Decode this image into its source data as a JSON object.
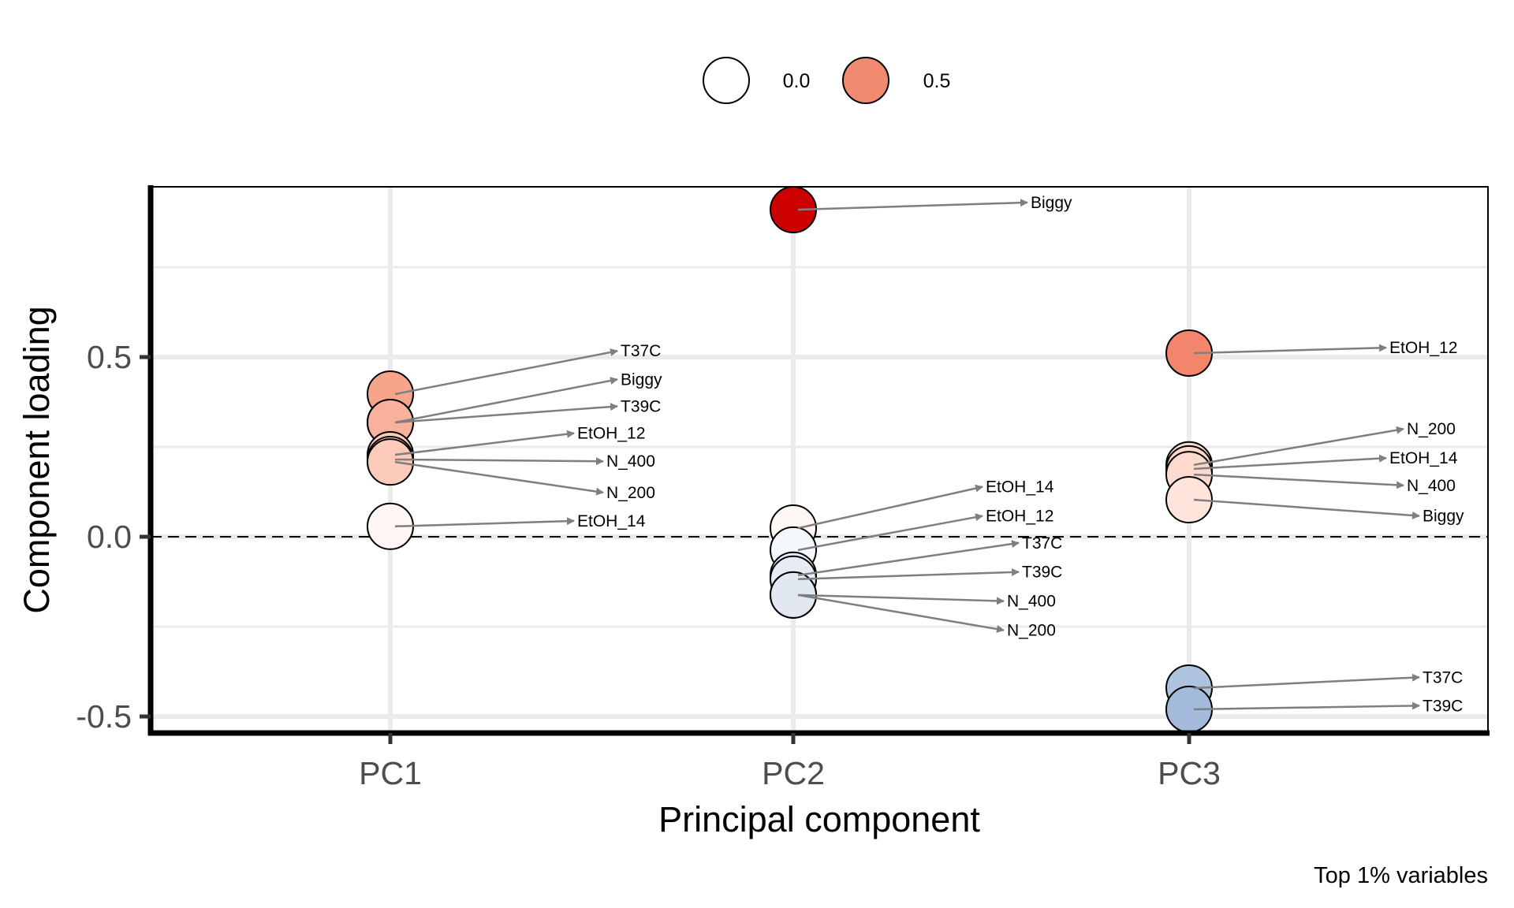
{
  "chart_data": {
    "type": "scatter",
    "title": "",
    "xlabel": "Principal component",
    "ylabel": "Component loading",
    "caption": "Top 1% variables",
    "categories": [
      "PC1",
      "PC2",
      "PC3"
    ],
    "ylim": [
      -0.548,
      0.974
    ],
    "yticks": [
      -0.5,
      0.0,
      0.5
    ],
    "ytick_labels": [
      "-0.5",
      "0.0",
      "0.5"
    ],
    "grid": true,
    "reference_line": {
      "y": 0.0,
      "style": "dashed"
    },
    "legend": {
      "placement": "top",
      "title": "",
      "entries": [
        {
          "label": "0.0",
          "value": 0.0,
          "color": "#FFFFFF"
        },
        {
          "label": "0.5",
          "value": 0.5,
          "color": "#F08A70"
        }
      ]
    },
    "color_scale": {
      "low": "#6A8EC8",
      "mid": "#FFFFFF",
      "high": "#CC0000",
      "midpoint": 0.0
    },
    "series": [
      {
        "name": "PC1",
        "points": [
          {
            "variable": "T37C",
            "loading": 0.397,
            "color": "#F6A58A",
            "label_offset": [
              0.0,
              0.12
            ]
          },
          {
            "variable": "Biggy",
            "loading": 0.318,
            "color": "#F8B19B",
            "label_offset": [
              0.0,
              0.12
            ]
          },
          {
            "variable": "T39C",
            "loading": 0.318,
            "color": "#F8B19B",
            "label_offset": [
              0.0,
              0.045
            ]
          },
          {
            "variable": "EtOH_12",
            "loading": 0.228,
            "color": "#FCCAB9",
            "label_offset": [
              0.0,
              0.06
            ]
          },
          {
            "variable": "N_400",
            "loading": 0.215,
            "color": "#FCCAB9",
            "label_offset": [
              0.0,
              -0.005
            ]
          },
          {
            "variable": "N_200",
            "loading": 0.208,
            "color": "#FCCAB9",
            "label_offset": [
              0.0,
              -0.085
            ]
          },
          {
            "variable": "EtOH_14",
            "loading": 0.029,
            "color": "#FFF5F2",
            "label_offset": [
              0.0,
              0.015
            ]
          }
        ]
      },
      {
        "name": "PC2",
        "points": [
          {
            "variable": "Biggy",
            "loading": 0.91,
            "color": "#CC0000",
            "label_offset": [
              0.0,
              0.02
            ]
          },
          {
            "variable": "EtOH_14",
            "loading": 0.024,
            "color": "#FFF7F4",
            "label_offset": [
              0.0,
              0.115
            ]
          },
          {
            "variable": "EtOH_12",
            "loading": -0.037,
            "color": "#F4F7FB",
            "label_offset": [
              0.0,
              0.095
            ]
          },
          {
            "variable": "T37C",
            "loading": -0.107,
            "color": "#E6ECF4",
            "label_offset": [
              0.0,
              0.09
            ]
          },
          {
            "variable": "T39C",
            "loading": -0.118,
            "color": "#E6ECF4",
            "label_offset": [
              0.0,
              0.02
            ]
          },
          {
            "variable": "N_400",
            "loading": -0.162,
            "color": "#E1E8F2",
            "label_offset": [
              0.0,
              -0.017
            ]
          },
          {
            "variable": "N_200",
            "loading": -0.162,
            "color": "#E1E8F2",
            "label_offset": [
              0.0,
              -0.098
            ]
          }
        ]
      },
      {
        "name": "PC3",
        "points": [
          {
            "variable": "EtOH_12",
            "loading": 0.511,
            "color": "#F2856B",
            "label_offset": [
              0.0,
              0.015
            ]
          },
          {
            "variable": "N_200",
            "loading": 0.2,
            "color": "#FDD7CC",
            "label_offset": [
              0.0,
              0.1
            ]
          },
          {
            "variable": "EtOH_14",
            "loading": 0.189,
            "color": "#FDD7CC",
            "label_offset": [
              0.0,
              0.03
            ]
          },
          {
            "variable": "N_400",
            "loading": 0.173,
            "color": "#FDD9CE",
            "label_offset": [
              0.0,
              -0.03
            ]
          },
          {
            "variable": "Biggy",
            "loading": 0.103,
            "color": "#FEE4DB",
            "label_offset": [
              0.0,
              -0.045
            ]
          },
          {
            "variable": "T37C",
            "loading": -0.421,
            "color": "#ADC3DE",
            "label_offset": [
              0.0,
              0.03
            ]
          },
          {
            "variable": "T39C",
            "loading": -0.48,
            "color": "#A4BADA",
            "label_offset": [
              0.0,
              0.01
            ]
          }
        ]
      }
    ]
  }
}
